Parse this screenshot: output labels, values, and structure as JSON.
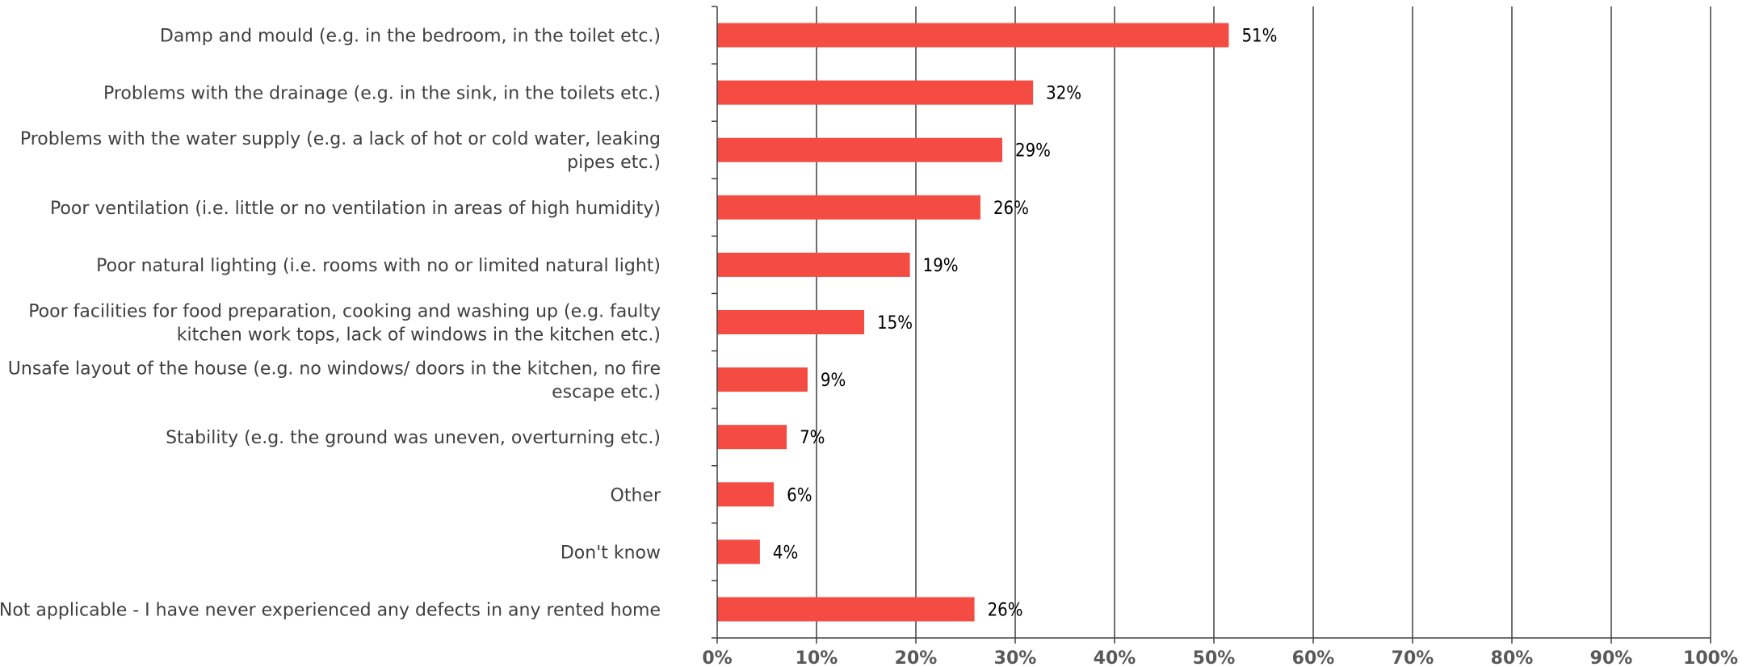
{
  "chart_data": {
    "type": "bar",
    "orientation": "horizontal",
    "categories": [
      [
        "Damp and mould (e.g. in the bedroom, in the toilet etc.)"
      ],
      [
        "Problems with the drainage (e.g. in the sink, in the toilets etc.)"
      ],
      [
        "Problems with the water supply (e.g. a lack of hot or cold water, leaking",
        "pipes etc.)"
      ],
      [
        "Poor ventilation (i.e. little or no ventilation in areas of high humidity)"
      ],
      [
        "Poor natural lighting (i.e. rooms with no or limited natural light)"
      ],
      [
        "Poor facilities for food preparation, cooking and washing up (e.g. faulty",
        "kitchen work tops, lack of windows in the kitchen etc.)"
      ],
      [
        "Unsafe layout of the house (e.g. no windows/ doors in the kitchen, no fire",
        "escape etc.)"
      ],
      [
        "Stability (e.g. the ground was uneven, overturning etc.)"
      ],
      [
        "Other"
      ],
      [
        "Don't know"
      ],
      [
        "Not applicable - I have never experienced any defects in any rented home"
      ]
    ],
    "values": [
      51.5,
      31.8,
      28.7,
      26.5,
      19.4,
      14.8,
      9.1,
      7.0,
      5.7,
      4.3,
      25.9
    ],
    "data_labels": [
      "51%",
      "32%",
      "29%",
      "26%",
      "19%",
      "15%",
      "9%",
      "7%",
      "6%",
      "4%",
      "26%"
    ],
    "xlim": [
      0,
      100
    ],
    "x_ticks": [
      "0%",
      "10%",
      "20%",
      "30%",
      "40%",
      "50%",
      "60%",
      "70%",
      "80%",
      "90%",
      "100%"
    ],
    "grid": true,
    "bar_color": "#F44B42",
    "title": "",
    "xlabel": "",
    "ylabel": ""
  }
}
